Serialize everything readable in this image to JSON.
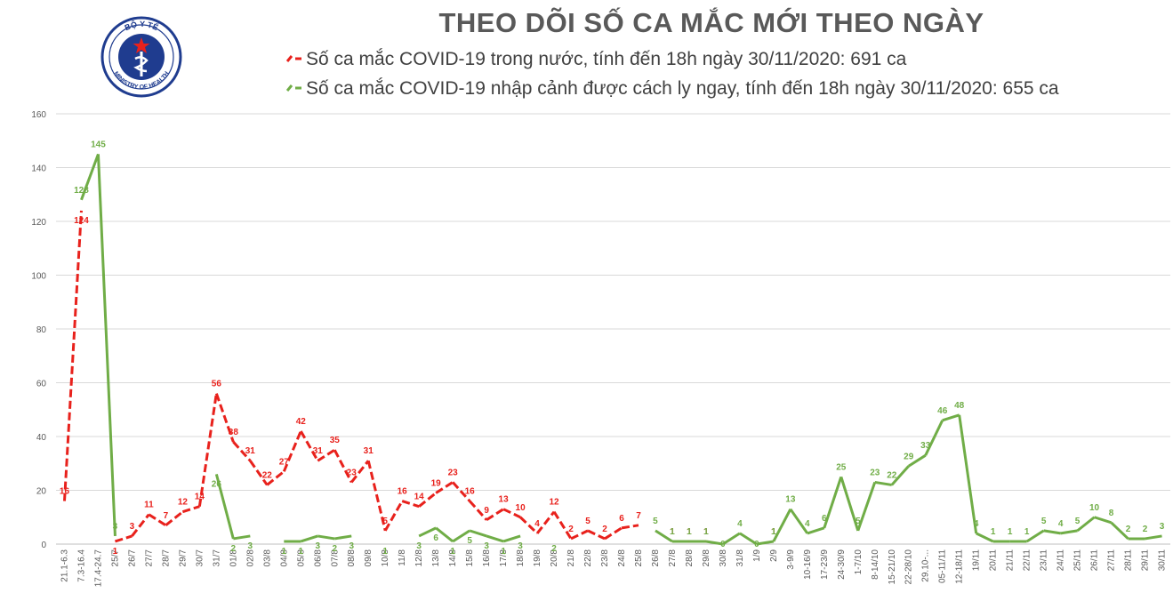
{
  "logo": {
    "text_top": "BỘ Y TẾ",
    "text_bottom": "MINISTRY OF HEALTH"
  },
  "colors": {
    "domestic": "#e8211c",
    "imported": "#70ad47",
    "grid": "#d9d9d9",
    "text": "#595959"
  },
  "chart_data": {
    "type": "line",
    "title": "THEO DÕI SỐ CA MẮC MỚI THEO NGÀY",
    "ylim": [
      0,
      160
    ],
    "yticks": [
      0,
      20,
      40,
      60,
      80,
      100,
      120,
      140,
      160
    ],
    "grid": true,
    "legend_placement": "top",
    "categories": [
      "21.1-6.3",
      "7.3-16.4",
      "17.4-24.7",
      "25/7",
      "26/7",
      "27/7",
      "28/7",
      "29/7",
      "30/7",
      "31/7",
      "01/8",
      "02/8",
      "03/8",
      "04/8",
      "05/8",
      "06/8",
      "07/8",
      "08/8",
      "09/8",
      "10/8",
      "11/8",
      "12/8",
      "13/8",
      "14/8",
      "15/8",
      "16/8",
      "17/8",
      "18/8",
      "19/8",
      "20/8",
      "21/8",
      "22/8",
      "23/8",
      "24/8",
      "25/8",
      "26/8",
      "27/8",
      "28/8",
      "29/8",
      "30/8",
      "31/8",
      "1/9",
      "2/9",
      "3-9/9",
      "10-16/9",
      "17-23/9",
      "24-30/9",
      "1-7/10",
      "8-14/10",
      "15-21/10",
      "22-28/10",
      "29.10-...",
      "05-11/11",
      "12-18/11",
      "19/11",
      "20/11",
      "21/11",
      "22/11",
      "23/11",
      "24/11",
      "25/11",
      "26/11",
      "27/11",
      "28/11",
      "29/11",
      "30/11"
    ],
    "series": [
      {
        "name": "Số ca mắc COVID-19 trong nước, tính đến 18h ngày 30/11/2020: 691 ca",
        "color": "#e8211c",
        "values": [
          16,
          124,
          null,
          1,
          3,
          11,
          7,
          12,
          14,
          56,
          38,
          31,
          22,
          27,
          42,
          31,
          35,
          23,
          31,
          5,
          16,
          14,
          19,
          23,
          16,
          9,
          13,
          10,
          4,
          12,
          2,
          5,
          2,
          6,
          7,
          null,
          1,
          1,
          1,
          null,
          null,
          null,
          1,
          null,
          null,
          null,
          null,
          null,
          null,
          null,
          null,
          null,
          null,
          null,
          null,
          null,
          null,
          null,
          null,
          null,
          null,
          null,
          null,
          null,
          null,
          null
        ]
      },
      {
        "name": "Số ca mắc COVID-19 nhập cảnh được cách ly ngay, tính đến 18h ngày 30/11/2020: 655 ca",
        "color": "#70ad47",
        "values": [
          null,
          128,
          145,
          3,
          null,
          null,
          null,
          null,
          null,
          26,
          2,
          3,
          null,
          1,
          1,
          3,
          2,
          3,
          null,
          1,
          null,
          3,
          6,
          1,
          5,
          3,
          1,
          3,
          null,
          2,
          null,
          null,
          null,
          null,
          null,
          5,
          1,
          1,
          1,
          0,
          4,
          0,
          1,
          13,
          4,
          6,
          25,
          5,
          23,
          22,
          29,
          33,
          46,
          48,
          4,
          1,
          1,
          1,
          5,
          4,
          5,
          10,
          8,
          2,
          2,
          3
        ]
      }
    ]
  }
}
